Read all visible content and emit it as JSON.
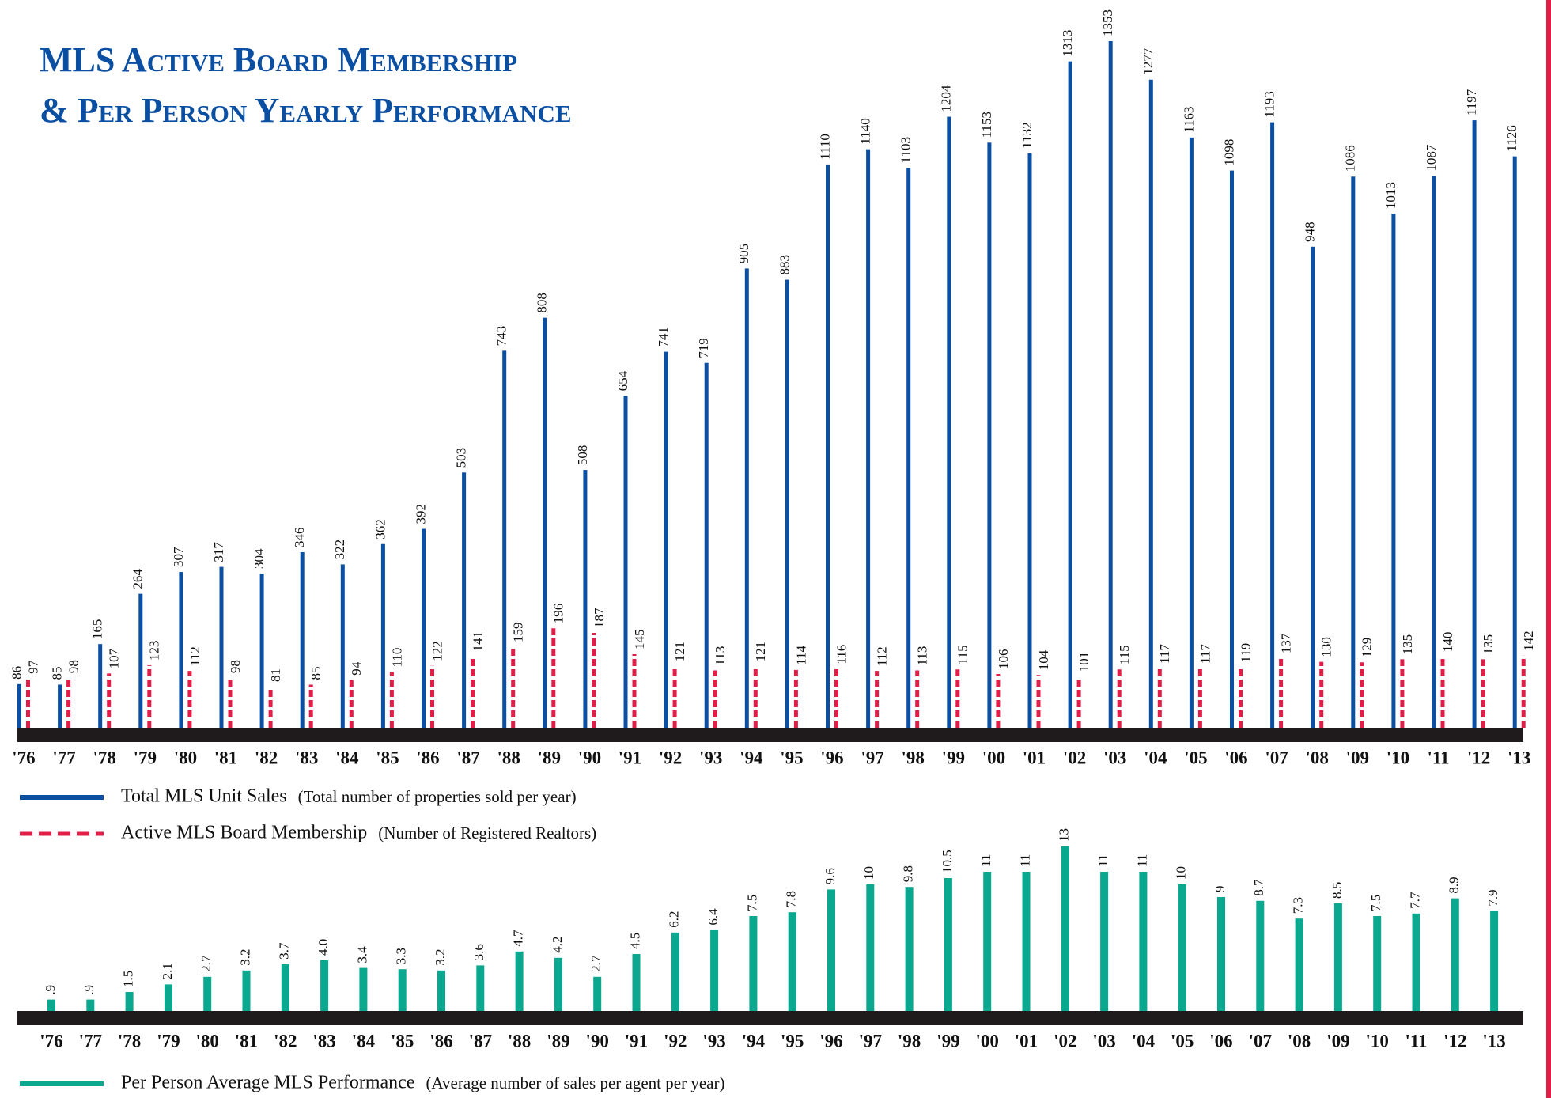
{
  "chart_data": [
    {
      "type": "bar",
      "title": [
        "MLS Active Board Membership",
        "& Per Person Yearly Performance"
      ],
      "categories": [
        "'76",
        "'77",
        "'78",
        "'79",
        "'80",
        "'81",
        "'82",
        "'83",
        "'84",
        "'85",
        "'86",
        "'87",
        "'88",
        "'89",
        "'90",
        "'91",
        "'92",
        "'93",
        "'94",
        "'95",
        "'96",
        "'97",
        "'98",
        "'99",
        "'00",
        "'01",
        "'02",
        "'03",
        "'04",
        "'05",
        "'06",
        "'07",
        "'08",
        "'09",
        "'10",
        "'11",
        "'12",
        "'13"
      ],
      "series": [
        {
          "name": "Total MLS Unit Sales",
          "description": "(Total number of properties sold per year)",
          "color": "#0b4fa3",
          "style": "solid",
          "values": [
            86,
            85,
            165,
            264,
            307,
            317,
            304,
            346,
            322,
            362,
            392,
            503,
            743,
            808,
            508,
            654,
            741,
            719,
            905,
            883,
            1110,
            1140,
            1103,
            1204,
            1153,
            1132,
            1313,
            1353,
            1277,
            1163,
            1098,
            1193,
            948,
            1086,
            1013,
            1087,
            1197,
            1126
          ]
        },
        {
          "name": "Active MLS Board Membership",
          "description": "(Number of Registered Realtors)",
          "color": "#e11d48",
          "style": "dashed",
          "values": [
            97,
            98,
            107,
            123,
            112,
            98,
            81,
            85,
            94,
            110,
            122,
            141,
            159,
            196,
            187,
            145,
            121,
            113,
            121,
            114,
            116,
            112,
            113,
            115,
            106,
            104,
            101,
            115,
            117,
            117,
            119,
            137,
            130,
            129,
            135,
            140,
            135,
            142
          ]
        }
      ]
    },
    {
      "type": "bar",
      "categories": [
        "'76",
        "'77",
        "'78",
        "'79",
        "'80",
        "'81",
        "'82",
        "'83",
        "'84",
        "'85",
        "'86",
        "'87",
        "'88",
        "'89",
        "'90",
        "'91",
        "'92",
        "'93",
        "'94",
        "'95",
        "'96",
        "'97",
        "'98",
        "'99",
        "'00",
        "'01",
        "'02",
        "'03",
        "'04",
        "'05",
        "'06",
        "'07",
        "'08",
        "'09",
        "'10",
        "'11",
        "'12",
        "'13"
      ],
      "series": [
        {
          "name": "Per Person Average MLS Performance",
          "description": "(Average number of sales per agent per year)",
          "color": "#0aa88e",
          "style": "solid",
          "values": [
            0.9,
            0.9,
            1.5,
            2.1,
            2.7,
            3.2,
            3.7,
            4,
            3.4,
            3.3,
            3.2,
            3.6,
            4.7,
            4.2,
            2.7,
            4.5,
            6.2,
            6.4,
            7.5,
            7.8,
            9.6,
            10,
            9.8,
            10.5,
            11,
            11,
            13,
            11,
            11,
            10,
            9,
            8.7,
            7.3,
            8.5,
            7.5,
            7.7,
            8.9,
            7.9
          ],
          "value_labels": [
            ".9",
            ".9",
            "1.5",
            "2.1",
            "2.7",
            "3.2",
            "3.7",
            "4.0",
            "3.4",
            "3.3",
            "3.2",
            "3.6",
            "4.7",
            "4.2",
            "2.7",
            "4.5",
            "6.2",
            "6.4",
            "7.5",
            "7.8",
            "9.6",
            "10",
            "9.8",
            "10.5",
            "11",
            "11",
            "13",
            "11",
            "11",
            "10",
            "9",
            "8.7",
            "7.3",
            "8.5",
            "7.5",
            "7.7",
            "8.9",
            "7.9"
          ]
        }
      ]
    }
  ]
}
